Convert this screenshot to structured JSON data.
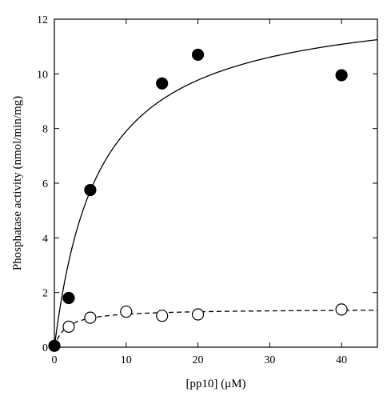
{
  "chart_data": {
    "type": "scatter",
    "xlabel": "[pp10] (μM)",
    "ylabel": "Phosphatase activity (nmol/min/mg)",
    "xlim": [
      0,
      45
    ],
    "ylim": [
      0,
      12
    ],
    "x_ticks": [
      0,
      10,
      20,
      30,
      40
    ],
    "y_ticks": [
      0,
      2,
      4,
      6,
      8,
      10,
      12
    ],
    "grid": false,
    "legend": "none",
    "series": [
      {
        "marker": "filled-circle",
        "color": "#000000",
        "x": [
          0,
          2,
          5,
          15,
          20,
          40
        ],
        "y": [
          0.05,
          1.8,
          5.75,
          9.65,
          10.7,
          9.95
        ],
        "fit": {
          "model": "michaelis-menten",
          "vmax": 12.8,
          "km": 6.2,
          "line": "solid"
        }
      },
      {
        "marker": "open-circle",
        "color": "#000000",
        "x": [
          2,
          5,
          10,
          15,
          20,
          40
        ],
        "y": [
          0.75,
          1.08,
          1.3,
          1.15,
          1.2,
          1.38
        ],
        "fit": {
          "model": "michaelis-menten",
          "vmax": 1.4,
          "km": 1.6,
          "line": "dashed"
        }
      }
    ]
  }
}
